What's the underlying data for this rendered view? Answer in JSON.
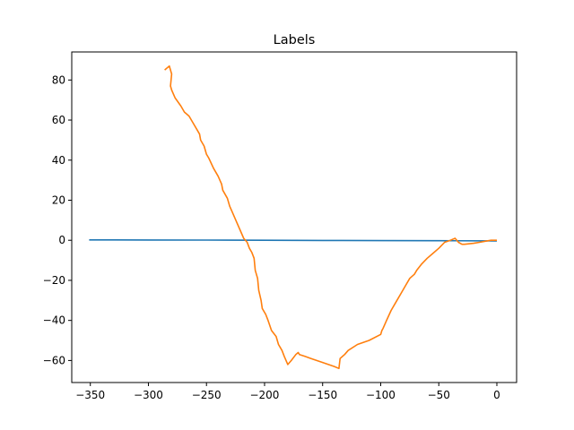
{
  "chart_data": {
    "type": "line",
    "title": "Labels",
    "xlabel": "",
    "ylabel": "",
    "xlim": [
      -366,
      17
    ],
    "ylim": [
      -71,
      94
    ],
    "xticks": [
      -350,
      -300,
      -250,
      -200,
      -150,
      -100,
      -50,
      0
    ],
    "yticks": [
      -60,
      -40,
      -20,
      0,
      20,
      40,
      60,
      80
    ],
    "grid": false,
    "series": [
      {
        "color": "#1f77b4",
        "x": [
          -351,
          -300,
          -250,
          -200,
          -150,
          -100,
          -50,
          0
        ],
        "y": [
          0.2,
          0.15,
          0.1,
          0.0,
          -0.1,
          -0.15,
          -0.2,
          -0.3
        ]
      },
      {
        "color": "#ff7f0e",
        "x": [
          -286,
          -282,
          -280,
          -281,
          -280,
          -277,
          -272,
          -269,
          -265,
          -261,
          -258,
          -256,
          -255,
          -252,
          -250,
          -248,
          -244,
          -240,
          -237,
          -236,
          -232,
          -230,
          -227,
          -224,
          -221,
          -218,
          -215,
          -213,
          -211,
          -209,
          -208,
          -206,
          -205,
          -203,
          -202,
          -199,
          -197,
          -194,
          -190,
          -188,
          -185,
          -183,
          -180,
          -177,
          -173,
          -171,
          -170,
          -165,
          -160,
          -150,
          -140,
          -136,
          -135,
          -131,
          -128,
          -120,
          -110,
          -100,
          -99,
          -98,
          -95,
          -91,
          -86,
          -82,
          -78,
          -75,
          -71,
          -69,
          -65,
          -60,
          -56,
          -50,
          -45,
          -40,
          -36,
          -33,
          -30,
          -28,
          -20,
          -15,
          -10,
          -5,
          0
        ],
        "y": [
          85,
          87,
          83,
          77,
          75,
          71,
          67,
          64,
          62,
          58,
          55,
          53,
          50,
          47,
          43,
          41,
          36,
          32,
          28,
          25,
          21,
          17,
          13,
          9,
          5,
          1,
          -1,
          -4,
          -6,
          -9,
          -15,
          -19,
          -25,
          -30,
          -34,
          -37,
          -40,
          -45,
          -48,
          -52,
          -55,
          -58,
          -62,
          -60,
          -57,
          -56,
          -57,
          -58,
          -59,
          -61,
          -63,
          -64,
          -59,
          -57,
          -55,
          -52,
          -50,
          -47,
          -45,
          -44,
          -40,
          -35,
          -30,
          -26,
          -22,
          -19,
          -17,
          -15,
          -12,
          -9,
          -7,
          -4,
          -1,
          0,
          1,
          -1,
          -2,
          -2,
          -1.5,
          -1,
          -0.5,
          0,
          0
        ]
      }
    ]
  }
}
